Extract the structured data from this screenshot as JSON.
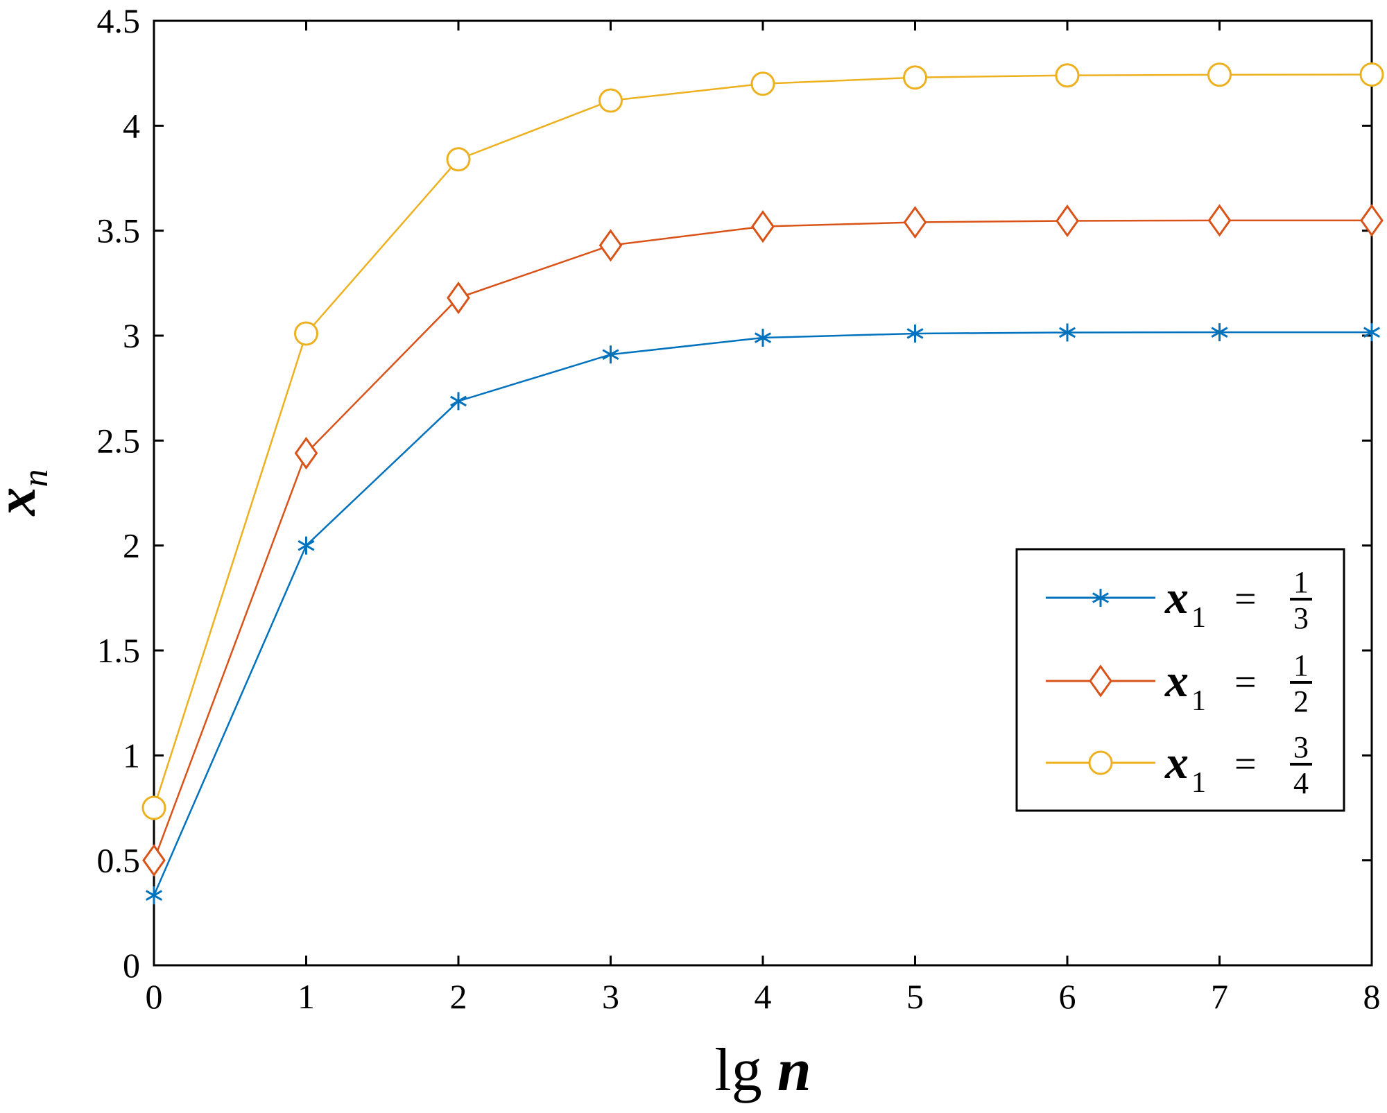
{
  "chart_data": {
    "type": "line",
    "xlabel": {
      "main": "lg",
      "var": "n"
    },
    "ylabel": {
      "main": "x",
      "sub": "n"
    },
    "xlim": [
      0,
      8
    ],
    "ylim": [
      0,
      4.5
    ],
    "x_ticks": [
      "0",
      "1",
      "2",
      "3",
      "4",
      "5",
      "6",
      "7",
      "8"
    ],
    "y_ticks": [
      "0",
      "0.5",
      "1",
      "1.5",
      "2",
      "2.5",
      "3",
      "3.5",
      "4",
      "4.5"
    ],
    "grid": false,
    "legend_position": "right",
    "x": [
      0,
      1,
      2,
      3,
      4,
      5,
      6,
      7,
      8
    ],
    "series": [
      {
        "label": {
          "var": "x",
          "sub": "1",
          "eq": "=",
          "num": "1",
          "den": "3"
        },
        "color": "#0072BD",
        "marker": "asterisk",
        "values": [
          0.333,
          2.0,
          2.688,
          2.91,
          2.99,
          3.01,
          3.015,
          3.016,
          3.016
        ]
      },
      {
        "label": {
          "var": "x",
          "sub": "1",
          "eq": "=",
          "num": "1",
          "den": "2"
        },
        "color": "#D95319",
        "marker": "diamond",
        "values": [
          0.5,
          2.44,
          3.18,
          3.43,
          3.52,
          3.54,
          3.547,
          3.549,
          3.549
        ]
      },
      {
        "label": {
          "var": "x",
          "sub": "1",
          "eq": "=",
          "num": "3",
          "den": "4"
        },
        "color": "#EDB120",
        "marker": "circle",
        "values": [
          0.75,
          3.01,
          3.84,
          4.12,
          4.2,
          4.23,
          4.24,
          4.243,
          4.244
        ]
      }
    ]
  }
}
